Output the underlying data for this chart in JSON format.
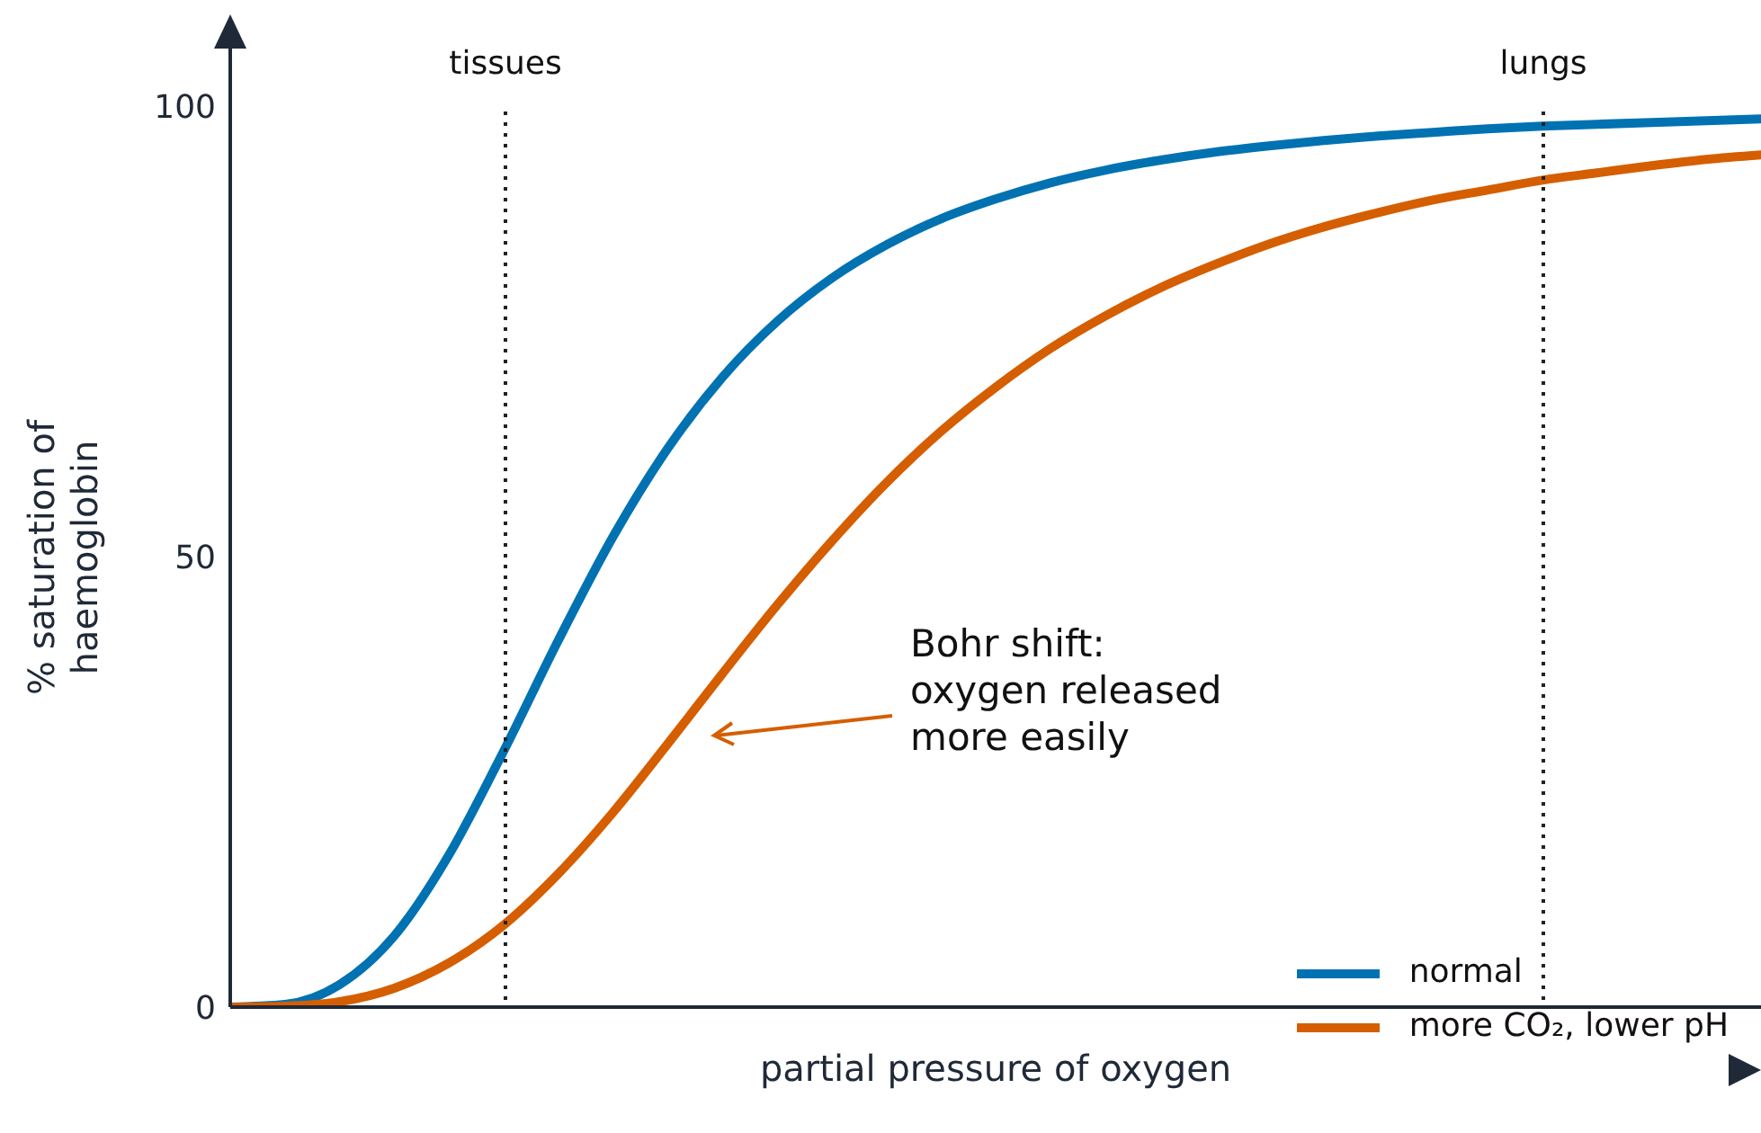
{
  "chart_data": {
    "type": "line",
    "xlabel": "partial pressure of oxygen",
    "ylabel": "% saturation of haemoglobin",
    "categories": [
      null,
      null,
      null,
      null,
      null,
      null,
      null,
      null,
      null,
      null,
      null,
      null,
      null,
      null,
      null,
      null,
      null,
      null,
      null,
      null,
      null,
      null,
      null,
      null,
      null,
      null,
      null,
      null,
      null
    ],
    "series": [
      {
        "name": "normal",
        "color": "#0072b2",
        "values": [
          0,
          0.3,
          2.5,
          7.9,
          16.9,
          28.4,
          40.7,
          52.2,
          62.0,
          69.9,
          76.1,
          80.9,
          84.6,
          87.5,
          89.7,
          91.5,
          92.9,
          94.0,
          94.9,
          95.6,
          96.2,
          96.7,
          97.1,
          97.5,
          97.8,
          98.0,
          98.2,
          98.4,
          98.6
        ]
      },
      {
        "name": "more CO₂, lower pH",
        "color": "#d55e00",
        "values": [
          0,
          0.1,
          0.6,
          2.1,
          4.9,
          9.1,
          14.8,
          21.6,
          29.2,
          37.0,
          44.6,
          51.7,
          58.2,
          63.9,
          68.8,
          73.1,
          76.7,
          79.8,
          82.4,
          84.7,
          86.6,
          88.2,
          89.6,
          90.7,
          91.8,
          92.6,
          93.4,
          94.1,
          94.6
        ]
      }
    ],
    "ylim": [
      0,
      109
    ],
    "yticks": [
      0,
      50,
      100
    ],
    "tick_labels": "y",
    "grid": false,
    "legend": "bottom right",
    "marker": "none",
    "line_style": "solid",
    "annotations": [
      "Bohr shift:\noxygen released\nmore easily",
      "tissues",
      "lungs"
    ]
  }
}
